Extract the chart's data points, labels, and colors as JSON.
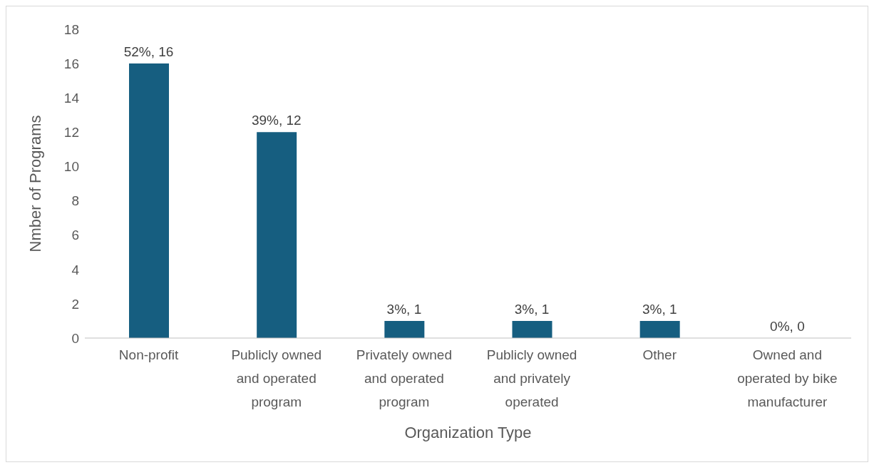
{
  "chart_data": {
    "type": "bar",
    "xlabel": "Organization Type",
    "ylabel": "Nmber of Programs",
    "categories": [
      "Non-profit",
      "Publicly owned and operated program",
      "Privately owned and operated program",
      "Publicly owned and privately operated",
      "Other",
      "Owned and operated by bike manufacturer"
    ],
    "values": [
      16,
      12,
      1,
      1,
      1,
      0
    ],
    "color": "#165e80",
    "value_labels": [
      "52%, 16",
      "39%, 12",
      "3%, 1",
      "3%, 1",
      "3%, 1",
      "0%, 0"
    ],
    "ylim": [
      0,
      18
    ],
    "yticks": [
      0,
      2,
      4,
      6,
      8,
      10,
      12,
      14,
      16,
      18
    ],
    "grid": false,
    "legend": false
  }
}
